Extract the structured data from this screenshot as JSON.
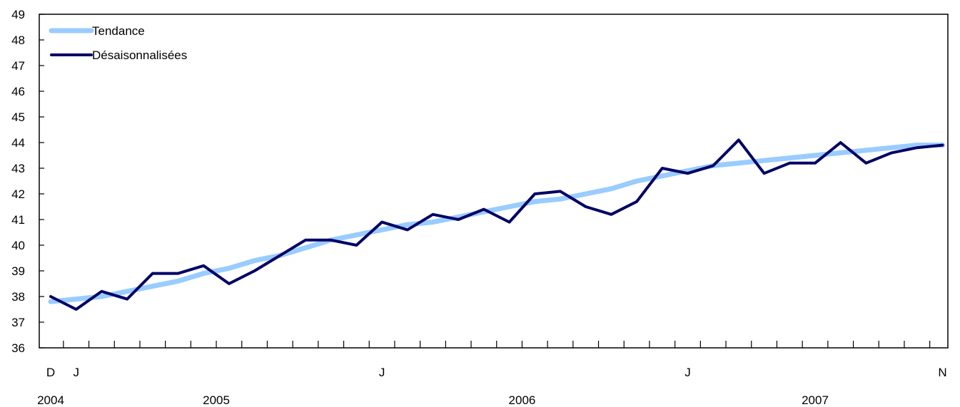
{
  "chart_data": {
    "type": "line",
    "title": "",
    "xlabel": "",
    "ylabel": "",
    "ylim": [
      36,
      49
    ],
    "yticks": [
      36,
      37,
      38,
      39,
      40,
      41,
      42,
      43,
      44,
      45,
      46,
      47,
      48,
      49
    ],
    "grid": false,
    "legend_position": "top-left",
    "x": [
      "2004-12",
      "2005-01",
      "2005-02",
      "2005-03",
      "2005-04",
      "2005-05",
      "2005-06",
      "2005-07",
      "2005-08",
      "2005-09",
      "2005-10",
      "2005-11",
      "2005-12",
      "2006-01",
      "2006-02",
      "2006-03",
      "2006-04",
      "2006-05",
      "2006-06",
      "2006-07",
      "2006-08",
      "2006-09",
      "2006-10",
      "2006-11",
      "2006-12",
      "2007-01",
      "2007-02",
      "2007-03",
      "2007-04",
      "2007-05",
      "2007-06",
      "2007-07",
      "2007-08",
      "2007-09",
      "2007-10",
      "2007-11"
    ],
    "month_labels": [
      {
        "index": 0,
        "text": "D"
      },
      {
        "index": 1,
        "text": "J"
      },
      {
        "index": 13,
        "text": "J"
      },
      {
        "index": 25,
        "text": "J"
      },
      {
        "index": 35,
        "text": "N"
      }
    ],
    "year_labels": [
      {
        "index": 0,
        "text": "2004"
      },
      {
        "index": 6.5,
        "text": "2005"
      },
      {
        "index": 18.5,
        "text": "2006"
      },
      {
        "index": 30,
        "text": "2007"
      }
    ],
    "series": [
      {
        "name": "Tendance",
        "color": "#99ccff",
        "values": [
          37.8,
          37.9,
          38.0,
          38.2,
          38.4,
          38.6,
          38.9,
          39.1,
          39.4,
          39.6,
          39.9,
          40.2,
          40.4,
          40.6,
          40.8,
          40.9,
          41.1,
          41.3,
          41.5,
          41.7,
          41.8,
          42.0,
          42.2,
          42.5,
          42.7,
          42.9,
          43.1,
          43.2,
          43.3,
          43.4,
          43.5,
          43.6,
          43.7,
          43.8,
          43.9,
          43.9
        ]
      },
      {
        "name": "Désaisonnalisées",
        "color": "#000066",
        "values": [
          38.0,
          37.5,
          38.2,
          37.9,
          38.9,
          38.9,
          39.2,
          38.5,
          39.0,
          39.6,
          40.2,
          40.2,
          40.0,
          40.9,
          40.6,
          41.2,
          41.0,
          41.4,
          40.9,
          42.0,
          42.1,
          41.5,
          41.2,
          41.7,
          43.0,
          42.8,
          43.1,
          44.1,
          42.8,
          43.2,
          43.2,
          44.0,
          43.2,
          43.6,
          43.8,
          43.9
        ]
      }
    ]
  }
}
